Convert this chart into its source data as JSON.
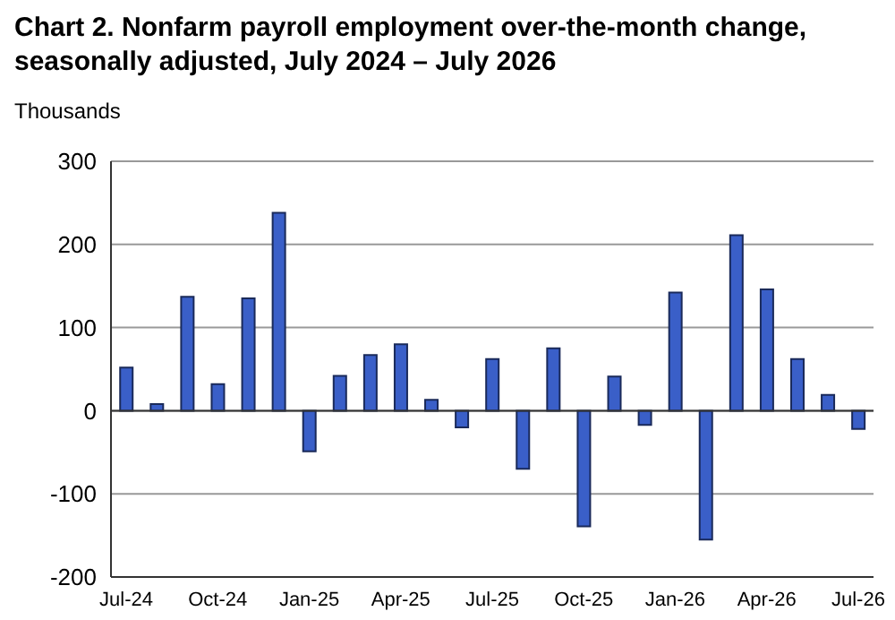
{
  "chart_data": {
    "type": "bar",
    "title": "Chart 2. Nonfarm payroll employment over-the-month change, seasonally adjusted, July 2024 – July 2026",
    "ylabel": "Thousands",
    "categories": [
      "Jul-24",
      null,
      null,
      "Oct-24",
      null,
      null,
      "Jan-25",
      null,
      null,
      "Apr-25",
      null,
      null,
      "Jul-25",
      null,
      null,
      "Oct-25",
      null,
      null,
      "Jan-26",
      null,
      null,
      "Apr-26",
      null,
      null,
      "Jul-26"
    ],
    "values": [
      52,
      8,
      137,
      32,
      135,
      238,
      -49,
      42,
      67,
      80,
      13,
      -20,
      62,
      -70,
      75,
      -139,
      41,
      -17,
      142,
      -155,
      211,
      146,
      62,
      19,
      -22
    ],
    "color": "#3a5fc8",
    "ylim": [
      -200,
      300
    ],
    "yticks": [
      -200,
      -100,
      0,
      100,
      200,
      300
    ],
    "grid": "y",
    "legend": false
  }
}
